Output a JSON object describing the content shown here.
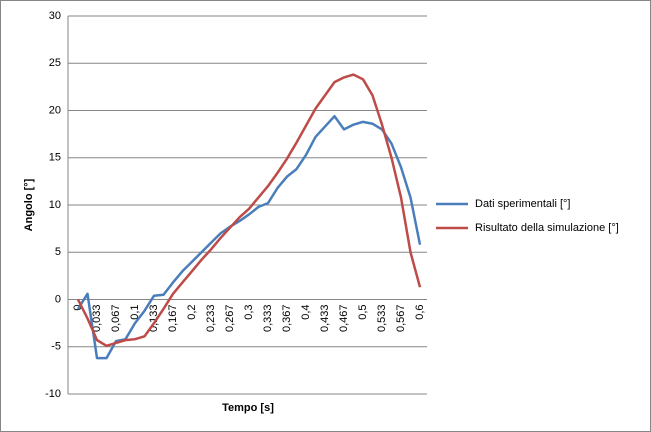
{
  "chart_data": {
    "type": "line",
    "x_label": "Tempo [s]",
    "y_label": "Angolo [°]",
    "categories": [
      "0",
      null,
      "0,033",
      null,
      "0,067",
      null,
      "0,1",
      null,
      "0,133",
      null,
      "0,167",
      null,
      "0,2",
      null,
      "0,233",
      null,
      "0,267",
      null,
      "0,3",
      null,
      "0,333",
      null,
      "0,367",
      null,
      "0,4",
      null,
      "0,433",
      null,
      "0,467",
      null,
      "0,5",
      null,
      "0,533",
      null,
      "0,567",
      null,
      "0,6"
    ],
    "series": [
      {
        "name": "Dati sperimentali [°]",
        "color": "#4a7ebb",
        "values": [
          -1,
          0.6,
          -6.2,
          -6.2,
          -4.4,
          -4.2,
          -2.5,
          -1.2,
          0.4,
          0.5,
          1.8,
          3.0,
          4.0,
          5.0,
          6.0,
          7.0,
          7.7,
          8.3,
          9.0,
          9.8,
          10.2,
          11.8,
          13.0,
          13.8,
          15.3,
          17.2,
          18.3,
          19.4,
          18.0,
          18.5,
          18.8,
          18.6,
          18.0,
          16.5,
          14.0,
          10.8,
          5.8
        ]
      },
      {
        "name": "Risultato della simulazione [°]",
        "color": "#be4b48",
        "values": [
          0,
          -2,
          -4.3,
          -4.9,
          -4.6,
          -4.3,
          -4.2,
          -3.9,
          -2.5,
          -1.0,
          0.6,
          1.8,
          3.0,
          4.2,
          5.3,
          6.5,
          7.6,
          8.7,
          9.6,
          10.8,
          12.0,
          13.4,
          14.9,
          16.6,
          18.4,
          20.2,
          21.6,
          23.0,
          23.5,
          23.8,
          23.3,
          21.6,
          18.5,
          15.0,
          10.8,
          5.0,
          1.3
        ]
      }
    ],
    "ylim": [
      -10,
      30
    ],
    "yticks": [
      -10,
      -5,
      0,
      5,
      10,
      15,
      20,
      25,
      30
    ],
    "grid": true,
    "legend": "right"
  }
}
